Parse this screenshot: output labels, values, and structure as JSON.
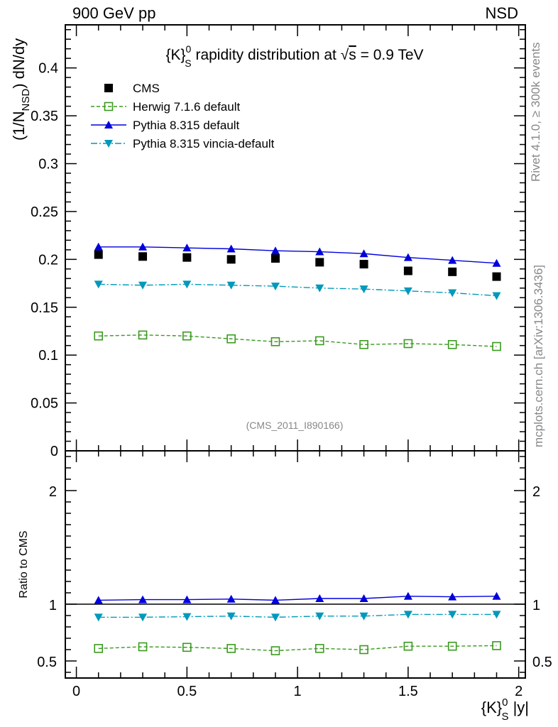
{
  "header": {
    "left": "900 GeV pp",
    "right": "NSD"
  },
  "side_text": {
    "rivet": "Rivet 4.1.0, ≥ 300k events",
    "mcplots": "mcplots.cern.ch [arXiv:1306.3436]"
  },
  "watermark": "(CMS_2011_I890166)",
  "title": {
    "pre": "{K}",
    "sup": "0",
    "sub": "S",
    "mid": " rapidity distribution at ",
    "sqrt": "√",
    "s": "s",
    "post": " = 0.9 TeV"
  },
  "ylabel_main": {
    "pre": "(1/N",
    "sub": "NSD",
    "post": ") dN/dy"
  },
  "ylabel_ratio": "Ratio to CMS",
  "xlabel": {
    "pre": "{K}",
    "sup": "0",
    "sub": "S",
    "post": " |y|"
  },
  "legend": [
    {
      "label": "CMS",
      "color": "#000000",
      "marker": "square-filled",
      "line": "none"
    },
    {
      "label": "Herwig 7.1.6 default",
      "color": "#3a9a1e",
      "marker": "square-open",
      "line": "dashed"
    },
    {
      "label": "Pythia 8.315 default",
      "color": "#0000dd",
      "marker": "triangle-up",
      "line": "solid"
    },
    {
      "label": "Pythia 8.315 vincia-default",
      "color": "#0099bb",
      "marker": "triangle-down",
      "line": "dashdot"
    }
  ],
  "chart_data": {
    "type": "scatter",
    "x": [
      0.1,
      0.3,
      0.5,
      0.7,
      0.9,
      1.1,
      1.3,
      1.5,
      1.7,
      1.9
    ],
    "xlim": [
      -0.05,
      2.03
    ],
    "xticks": [
      "0",
      "0.5",
      "1",
      "1.5",
      "2"
    ],
    "xtick_values": [
      0,
      0.5,
      1,
      1.5,
      2
    ],
    "main": {
      "ylim": [
        0,
        0.445
      ],
      "yticks": [
        "0",
        "0.05",
        "0.1",
        "0.15",
        "0.2",
        "0.25",
        "0.3",
        "0.35",
        "0.4"
      ],
      "ytick_values": [
        0,
        0.05,
        0.1,
        0.15,
        0.2,
        0.25,
        0.3,
        0.35,
        0.4
      ],
      "series": [
        {
          "name": "CMS",
          "values": [
            0.205,
            0.203,
            0.202,
            0.2,
            0.201,
            0.197,
            0.195,
            0.188,
            0.187,
            0.182
          ]
        },
        {
          "name": "Herwig 7.1.6 default",
          "values": [
            0.12,
            0.121,
            0.12,
            0.117,
            0.114,
            0.115,
            0.111,
            0.112,
            0.111,
            0.109
          ]
        },
        {
          "name": "Pythia 8.315 default",
          "values": [
            0.213,
            0.213,
            0.212,
            0.211,
            0.209,
            0.208,
            0.206,
            0.202,
            0.199,
            0.196
          ]
        },
        {
          "name": "Pythia 8.315 vincia-default",
          "values": [
            0.174,
            0.173,
            0.174,
            0.173,
            0.172,
            0.17,
            0.169,
            0.167,
            0.165,
            0.162
          ]
        }
      ]
    },
    "ratio": {
      "ylim": [
        0.35,
        2.35
      ],
      "yticks": [
        "0.5",
        "1",
        "2"
      ],
      "ytick_values": [
        0.5,
        1,
        2
      ],
      "series": [
        {
          "name": "Herwig 7.1.6 default",
          "values": [
            0.61,
            0.625,
            0.62,
            0.61,
            0.59,
            0.61,
            0.6,
            0.63,
            0.63,
            0.635
          ]
        },
        {
          "name": "Pythia 8.315 default",
          "values": [
            1.035,
            1.04,
            1.04,
            1.045,
            1.035,
            1.05,
            1.05,
            1.07,
            1.065,
            1.07
          ]
        },
        {
          "name": "Pythia 8.315 vincia-default",
          "values": [
            0.885,
            0.885,
            0.89,
            0.895,
            0.885,
            0.895,
            0.895,
            0.91,
            0.91,
            0.91
          ]
        }
      ]
    }
  }
}
